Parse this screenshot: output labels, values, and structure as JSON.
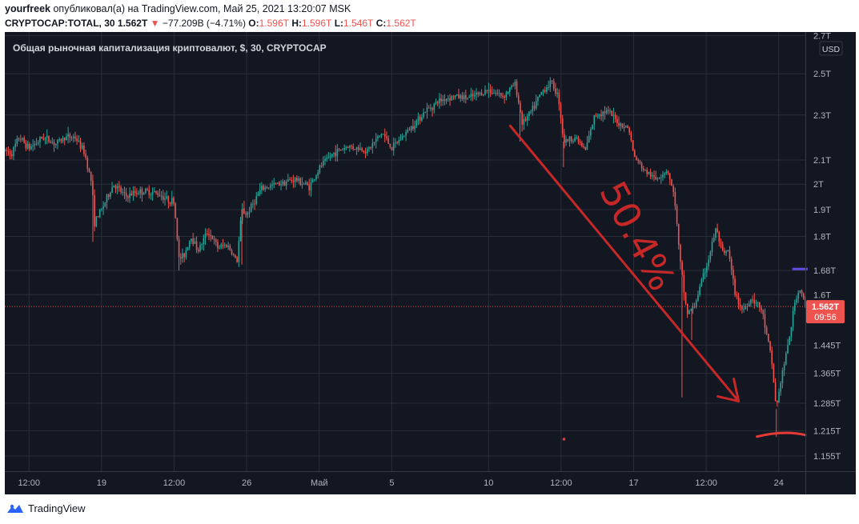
{
  "header": {
    "author": "yourfreek",
    "published_text": "опубликовал(а) на TradingView.com, Май 25, 2021 13:20:07 MSK",
    "symbol_line": "CRYPTOCAP:TOTAL, 30",
    "price": "1.562T",
    "change_arrow": "▼",
    "change": "−77.209B (−4.71%)",
    "o_label": "O:",
    "o_value": "1.596T",
    "h_label": "H:",
    "h_value": "1.596T",
    "l_label": "L:",
    "l_value": "1.546T",
    "c_label": "C:",
    "c_value": "1.562T"
  },
  "chart_data": {
    "type": "candlestick",
    "title": "Общая рыночная капитализация криптовалют, $, 30, CRYPTOCAP",
    "currency": "USD",
    "y_axis": {
      "scale": "log",
      "ticks": [
        "2.7T",
        "2.5T",
        "2.3T",
        "2.1T",
        "2T",
        "1.9T",
        "1.8T",
        "1.68T",
        "1.6T",
        "1.445T",
        "1.365T",
        "1.285T",
        "1.215T",
        "1.155T"
      ],
      "tick_values": [
        2.7,
        2.5,
        2.3,
        2.1,
        2.0,
        1.9,
        1.8,
        1.68,
        1.6,
        1.445,
        1.365,
        1.285,
        1.215,
        1.155
      ],
      "range": [
        1.12,
        2.72
      ]
    },
    "x_axis": {
      "ticks": [
        "12:00",
        "19",
        "12:00",
        "26",
        "Май",
        "5",
        "10",
        "12:00",
        "17",
        "12:00",
        "24"
      ],
      "tick_days": [
        0.5,
        2,
        3.5,
        5,
        6.5,
        8,
        10,
        11.5,
        13,
        14.5,
        16
      ],
      "range": [
        0,
        16.55
      ]
    },
    "path_points": [
      [
        0,
        2.14
      ],
      [
        0.15,
        2.13
      ],
      [
        0.3,
        2.2
      ],
      [
        0.5,
        2.15
      ],
      [
        0.8,
        2.2
      ],
      [
        1.05,
        2.17
      ],
      [
        1.25,
        2.2
      ],
      [
        1.45,
        2.2
      ],
      [
        1.65,
        2.13
      ],
      [
        1.8,
        2.0
      ],
      [
        1.85,
        1.85
      ],
      [
        2.0,
        1.9
      ],
      [
        2.25,
        2.0
      ],
      [
        2.5,
        1.95
      ],
      [
        2.75,
        1.97
      ],
      [
        3.0,
        1.97
      ],
      [
        3.2,
        1.96
      ],
      [
        3.35,
        1.94
      ],
      [
        3.5,
        1.93
      ],
      [
        3.6,
        1.72
      ],
      [
        3.7,
        1.73
      ],
      [
        3.85,
        1.8
      ],
      [
        4.0,
        1.75
      ],
      [
        4.2,
        1.82
      ],
      [
        4.4,
        1.76
      ],
      [
        4.6,
        1.77
      ],
      [
        4.8,
        1.71
      ],
      [
        4.9,
        1.9
      ],
      [
        5.0,
        1.88
      ],
      [
        5.3,
        1.98
      ],
      [
        5.6,
        2.0
      ],
      [
        6.0,
        2.02
      ],
      [
        6.3,
        1.99
      ],
      [
        6.55,
        2.08
      ],
      [
        6.8,
        2.13
      ],
      [
        7.1,
        2.16
      ],
      [
        7.5,
        2.14
      ],
      [
        7.8,
        2.22
      ],
      [
        8.0,
        2.15
      ],
      [
        8.3,
        2.22
      ],
      [
        8.7,
        2.32
      ],
      [
        9.0,
        2.37
      ],
      [
        9.3,
        2.39
      ],
      [
        9.6,
        2.38
      ],
      [
        10.0,
        2.42
      ],
      [
        10.3,
        2.39
      ],
      [
        10.55,
        2.45
      ],
      [
        10.7,
        2.26
      ],
      [
        10.9,
        2.32
      ],
      [
        11.1,
        2.41
      ],
      [
        11.3,
        2.46
      ],
      [
        11.45,
        2.38
      ],
      [
        11.55,
        2.18
      ],
      [
        11.8,
        2.2
      ],
      [
        12.0,
        2.14
      ],
      [
        12.2,
        2.3
      ],
      [
        12.45,
        2.32
      ],
      [
        12.7,
        2.26
      ],
      [
        12.9,
        2.24
      ],
      [
        13.0,
        2.12
      ],
      [
        13.2,
        2.06
      ],
      [
        13.45,
        2.02
      ],
      [
        13.7,
        2.06
      ],
      [
        13.85,
        1.94
      ],
      [
        13.95,
        1.72
      ],
      [
        14.1,
        1.54
      ],
      [
        14.25,
        1.56
      ],
      [
        14.4,
        1.64
      ],
      [
        14.55,
        1.72
      ],
      [
        14.7,
        1.83
      ],
      [
        14.85,
        1.73
      ],
      [
        14.95,
        1.75
      ],
      [
        15.1,
        1.6
      ],
      [
        15.25,
        1.55
      ],
      [
        15.45,
        1.59
      ],
      [
        15.65,
        1.55
      ],
      [
        15.85,
        1.4
      ],
      [
        15.95,
        1.27
      ],
      [
        16.05,
        1.35
      ],
      [
        16.2,
        1.45
      ],
      [
        16.35,
        1.59
      ],
      [
        16.45,
        1.62
      ],
      [
        16.55,
        1.562
      ]
    ],
    "last_price": "1.562T",
    "last_value": 1.562,
    "countdown": "09:56",
    "last_price_color": "#ef5350",
    "up_color": "#26a69a",
    "down_color": "#ef5350",
    "annotations": {
      "drawdown_text": "50.4%",
      "arrow_color": "#c62828"
    }
  },
  "footer": {
    "brand": "TradingView"
  }
}
